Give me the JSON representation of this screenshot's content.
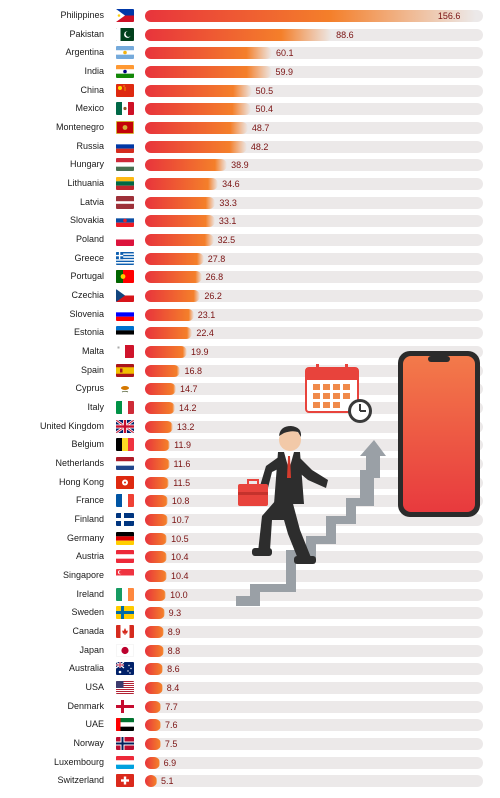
{
  "chart_data": {
    "type": "bar",
    "orientation": "horizontal",
    "title": "",
    "xlabel": "",
    "ylabel": "",
    "xlim": [
      0,
      160
    ],
    "bar_gradient": [
      "#e8343c",
      "#f47f2a"
    ],
    "track_color": "#ece9e9",
    "value_color": "#7a1212",
    "categories": [
      "Philippines",
      "Pakistan",
      "Argentina",
      "India",
      "China",
      "Mexico",
      "Montenegro",
      "Russia",
      "Hungary",
      "Lithuania",
      "Latvia",
      "Slovakia",
      "Poland",
      "Greece",
      "Portugal",
      "Czechia",
      "Slovenia",
      "Estonia",
      "Malta",
      "Spain",
      "Cyprus",
      "Italy",
      "United Kingdom",
      "Belgium",
      "Netherlands",
      "Hong Kong",
      "France",
      "Finland",
      "Germany",
      "Austria",
      "Singapore",
      "Ireland",
      "Sweden",
      "Canada",
      "Japan",
      "Australia",
      "USA",
      "Denmark",
      "UAE",
      "Norway",
      "Luxembourg",
      "Switzerland"
    ],
    "value_labels": [
      "156.6",
      "88.6",
      "60.1",
      "59.9",
      "50.5",
      "50.4",
      "48.7",
      "48.2",
      "38.9",
      "34.6",
      "33.3",
      "33.1",
      "32.5",
      "27.8",
      "26.8",
      "26.2",
      "23.1",
      "22.4",
      "19.9",
      "16.8",
      "14.7",
      "14.2",
      "13.2",
      "11.9",
      "11.6",
      "11.5",
      "10.8",
      "10.7",
      "10.5",
      "10.4",
      "10.4",
      "10.0",
      "9.3",
      "8.9",
      "8.8",
      "8.6",
      "8.4",
      "7.7",
      "7.6",
      "7.5",
      "6.9",
      "5.1"
    ],
    "values": [
      156.6,
      88.6,
      60.1,
      59.9,
      50.5,
      50.4,
      48.7,
      48.2,
      38.9,
      34.6,
      33.3,
      33.1,
      32.5,
      27.8,
      26.8,
      26.2,
      23.1,
      22.4,
      19.9,
      16.8,
      14.7,
      14.2,
      13.2,
      11.9,
      11.6,
      11.5,
      10.8,
      10.7,
      10.5,
      10.4,
      10.4,
      10.0,
      9.3,
      8.9,
      8.8,
      8.6,
      8.4,
      7.7,
      7.6,
      7.5,
      6.9,
      5.1
    ],
    "flags": [
      {
        "type": "ph"
      },
      {
        "type": "pk"
      },
      {
        "type": "h3",
        "colors": [
          "#75aadb",
          "#ffffff",
          "#75aadb"
        ],
        "emblem": "#f6b40e"
      },
      {
        "type": "h3",
        "colors": [
          "#ff9933",
          "#ffffff",
          "#138808"
        ],
        "emblem": "#000080"
      },
      {
        "type": "cn"
      },
      {
        "type": "v3",
        "colors": [
          "#006847",
          "#ffffff",
          "#ce1126"
        ],
        "emblem": "#8b5a2b"
      },
      {
        "type": "me"
      },
      {
        "type": "h3",
        "colors": [
          "#ffffff",
          "#0039a6",
          "#d52b1e"
        ]
      },
      {
        "type": "h3",
        "colors": [
          "#ce2939",
          "#ffffff",
          "#477050"
        ]
      },
      {
        "type": "h3",
        "colors": [
          "#fdb913",
          "#006a44",
          "#c1272d"
        ]
      },
      {
        "type": "lv"
      },
      {
        "type": "h3",
        "colors": [
          "#ffffff",
          "#0b4ea2",
          "#ee1c25"
        ],
        "emblem": "#ee1c25"
      },
      {
        "type": "h2",
        "colors": [
          "#ffffff",
          "#dc143c"
        ]
      },
      {
        "type": "gr"
      },
      {
        "type": "pt"
      },
      {
        "type": "cz"
      },
      {
        "type": "h3",
        "colors": [
          "#ffffff",
          "#0000ff",
          "#ff0000"
        ],
        "emblem": "#0000ff"
      },
      {
        "type": "h3",
        "colors": [
          "#0072ce",
          "#000000",
          "#ffffff"
        ]
      },
      {
        "type": "mt"
      },
      {
        "type": "es"
      },
      {
        "type": "cy"
      },
      {
        "type": "v3",
        "colors": [
          "#009246",
          "#ffffff",
          "#ce2b37"
        ]
      },
      {
        "type": "gb"
      },
      {
        "type": "v3",
        "colors": [
          "#000000",
          "#fdda24",
          "#ef3340"
        ]
      },
      {
        "type": "h3",
        "colors": [
          "#ae1c28",
          "#ffffff",
          "#21468b"
        ]
      },
      {
        "type": "hk"
      },
      {
        "type": "v3",
        "colors": [
          "#0055a4",
          "#ffffff",
          "#ef4135"
        ]
      },
      {
        "type": "nordic",
        "colors": [
          "#ffffff",
          "#003580"
        ]
      },
      {
        "type": "h3",
        "colors": [
          "#000000",
          "#dd0000",
          "#ffce00"
        ]
      },
      {
        "type": "h3",
        "colors": [
          "#ed2939",
          "#ffffff",
          "#ed2939"
        ]
      },
      {
        "type": "sg"
      },
      {
        "type": "v3",
        "colors": [
          "#169b62",
          "#ffffff",
          "#ff883e"
        ]
      },
      {
        "type": "nordic",
        "colors": [
          "#006aa7",
          "#fecc00"
        ]
      },
      {
        "type": "ca"
      },
      {
        "type": "jp"
      },
      {
        "type": "au"
      },
      {
        "type": "us"
      },
      {
        "type": "nordic",
        "colors": [
          "#c60c30",
          "#ffffff"
        ]
      },
      {
        "type": "ae"
      },
      {
        "type": "no"
      },
      {
        "type": "h3",
        "colors": [
          "#ed2939",
          "#ffffff",
          "#00a1de"
        ]
      },
      {
        "type": "ch"
      }
    ]
  }
}
